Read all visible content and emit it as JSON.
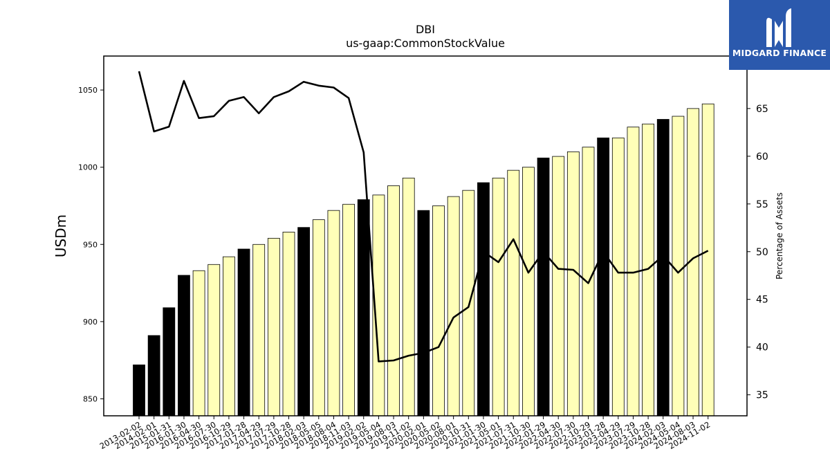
{
  "chart_data": {
    "type": "bar",
    "title": "DBI",
    "subtitle": "us-gaap:CommonStockValue",
    "ylabel": "USDm",
    "y2label": "Percentage of Assets",
    "ylim": [
      839,
      1072
    ],
    "y2lim": [
      32.8,
      70.5
    ],
    "yticks": [
      850,
      900,
      950,
      1000,
      1050
    ],
    "y2ticks": [
      35,
      40,
      45,
      50,
      55,
      60,
      65
    ],
    "categories": [
      "2013-02-02",
      "2014-02-01",
      "2015-01-31",
      "2016-01-30",
      "2016-04-30",
      "2016-07-30",
      "2016-10-29",
      "2017-01-28",
      "2017-04-29",
      "2017-07-29",
      "2017-10-28",
      "2018-02-03",
      "2018-05-05",
      "2018-08-04",
      "2018-11-03",
      "2019-02-02",
      "2019-05-04",
      "2019-08-03",
      "2019-11-02",
      "2020-02-01",
      "2020-05-02",
      "2020-08-01",
      "2020-10-31",
      "2021-01-30",
      "2021-05-01",
      "2021-07-31",
      "2021-10-30",
      "2022-01-29",
      "2022-04-30",
      "2022-07-30",
      "2022-10-29",
      "2023-01-28",
      "2023-04-29",
      "2023-07-29",
      "2023-10-28",
      "2024-02-03",
      "2024-05-04",
      "2024-08-03",
      "2024-11-02"
    ],
    "series": [
      {
        "type": "bar",
        "values": [
          872,
          891,
          909,
          930,
          933,
          937,
          942,
          947,
          950,
          954,
          958,
          961,
          966,
          972,
          976,
          979,
          982,
          988,
          993,
          972,
          975,
          981,
          985,
          990,
          993,
          998,
          1000,
          1006,
          1007,
          1010,
          1013,
          1019,
          1019,
          1026,
          1028,
          1031,
          1033,
          1038,
          1041
        ],
        "colors": [
          "#000000",
          "#000000",
          "#000000",
          "#000000",
          "#ffffb8",
          "#ffffb8",
          "#ffffb8",
          "#000000",
          "#ffffb8",
          "#ffffb8",
          "#ffffb8",
          "#000000",
          "#ffffb8",
          "#ffffb8",
          "#ffffb8",
          "#000000",
          "#ffffb8",
          "#ffffb8",
          "#ffffb8",
          "#000000",
          "#ffffb8",
          "#ffffb8",
          "#ffffb8",
          "#000000",
          "#ffffb8",
          "#ffffb8",
          "#ffffb8",
          "#000000",
          "#ffffb8",
          "#ffffb8",
          "#ffffb8",
          "#000000",
          "#ffffb8",
          "#ffffb8",
          "#ffffb8",
          "#000000",
          "#ffffb8",
          "#ffffb8",
          "#ffffb8"
        ]
      },
      {
        "type": "line",
        "axis": "right",
        "color": "#000000",
        "values": [
          68.9,
          62.6,
          63.1,
          67.9,
          64.0,
          64.2,
          65.8,
          66.2,
          64.5,
          66.2,
          66.8,
          67.8,
          67.4,
          67.2,
          66.1,
          60.4,
          38.5,
          38.6,
          39.1,
          39.4,
          40.0,
          43.1,
          44.2,
          50.0,
          48.9,
          51.3,
          47.8,
          50.0,
          48.2,
          48.1,
          46.7,
          50.0,
          47.8,
          47.8,
          48.2,
          49.6,
          47.8,
          49.3,
          50.1
        ]
      }
    ]
  },
  "brand": {
    "name": "MIDGARD FINANCE",
    "background": "#2b59ad"
  }
}
